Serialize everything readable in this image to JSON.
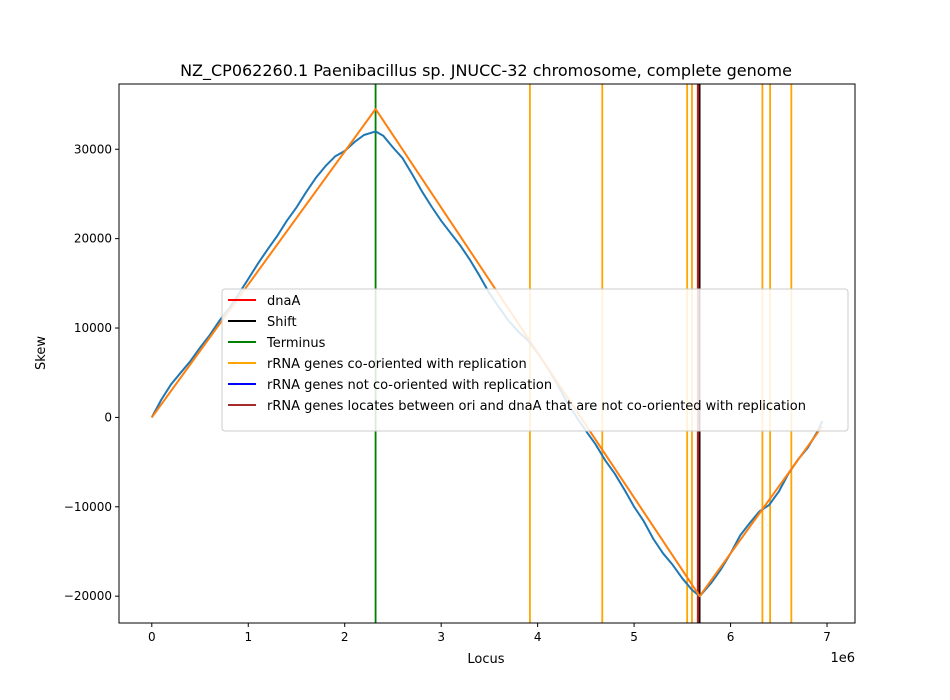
{
  "chart_data": {
    "type": "line",
    "title": "NZ_CP062260.1 Paenibacillus sp. JNUCC-32 chromosome, complete genome",
    "xlabel": "Locus",
    "ylabel": "Skew",
    "x_offset_label": "1e6",
    "xlim": [
      -340000,
      7290000
    ],
    "ylim": [
      -23000,
      37300
    ],
    "x_ticks": [
      0,
      1000000,
      2000000,
      3000000,
      4000000,
      5000000,
      6000000,
      7000000
    ],
    "x_tick_labels": [
      "0",
      "1",
      "2",
      "3",
      "4",
      "5",
      "6",
      "7"
    ],
    "y_ticks": [
      -20000,
      -10000,
      0,
      10000,
      20000,
      30000
    ],
    "y_tick_labels": [
      "−20000",
      "−10000",
      "0",
      "10000",
      "20000",
      "30000"
    ],
    "grid": false,
    "legend_position": "center-right",
    "series": [
      {
        "role": "skew",
        "color": "#1f77b4",
        "x": [
          0,
          100000,
          200000,
          300000,
          400000,
          500000,
          600000,
          700000,
          800000,
          900000,
          1000000,
          1100000,
          1200000,
          1300000,
          1400000,
          1500000,
          1600000,
          1700000,
          1800000,
          1900000,
          2000000,
          2100000,
          2200000,
          2320000,
          2400000,
          2500000,
          2600000,
          2700000,
          2800000,
          2900000,
          3000000,
          3100000,
          3200000,
          3300000,
          3400000,
          3500000,
          3600000,
          3700000,
          3800000,
          3900000,
          4000000,
          4100000,
          4200000,
          4300000,
          4400000,
          4500000,
          4600000,
          4700000,
          4800000,
          4900000,
          5000000,
          5100000,
          5200000,
          5300000,
          5400000,
          5500000,
          5600000,
          5680000,
          5800000,
          5900000,
          6000000,
          6100000,
          6200000,
          6300000,
          6400000,
          6500000,
          6600000,
          6700000,
          6800000,
          6900000,
          6950000
        ],
        "y": [
          0,
          2000,
          3700,
          5000,
          6300,
          7800,
          9200,
          10800,
          12200,
          13800,
          15500,
          17200,
          18800,
          20300,
          22000,
          23500,
          25200,
          26800,
          28100,
          29200,
          29800,
          30800,
          31600,
          32000,
          31500,
          30200,
          29000,
          27200,
          25300,
          23600,
          22000,
          20600,
          19200,
          17600,
          15800,
          13900,
          12300,
          10800,
          9600,
          8600,
          7200,
          5600,
          3800,
          1800,
          100,
          -1500,
          -3000,
          -4800,
          -6300,
          -8100,
          -10000,
          -11600,
          -13600,
          -15200,
          -16500,
          -18000,
          -19300,
          -20000,
          -18500,
          -17000,
          -15200,
          -13200,
          -11800,
          -10500,
          -9800,
          -8300,
          -6300,
          -4700,
          -3400,
          -1600,
          -400
        ]
      },
      {
        "role": "fit",
        "color": "#ff7f0e",
        "x": [
          0,
          2320000,
          5680000,
          6950000
        ],
        "y": [
          0,
          34500,
          -20000,
          -1000
        ]
      }
    ],
    "vertical_lines": [
      {
        "role": "Terminus",
        "x": 2320000,
        "color": "#008000"
      },
      {
        "role": "rRNA genes co-oriented with replication",
        "x": 3920000,
        "color": "#ffa500"
      },
      {
        "role": "rRNA genes co-oriented with replication",
        "x": 4670000,
        "color": "#ffa500"
      },
      {
        "role": "rRNA genes co-oriented with replication",
        "x": 5550000,
        "color": "#ffa500"
      },
      {
        "role": "rRNA genes co-oriented with replication",
        "x": 5600000,
        "color": "#ffa500"
      },
      {
        "role": "rRNA genes co-oriented with replication",
        "x": 6330000,
        "color": "#ffa500"
      },
      {
        "role": "rRNA genes co-oriented with replication",
        "x": 6410000,
        "color": "#ffa500"
      },
      {
        "role": "rRNA genes co-oriented with replication",
        "x": 6630000,
        "color": "#ffa500"
      },
      {
        "role": "rRNA genes locates between ori and dnaA that are not co-oriented with replication",
        "x": 5660000,
        "color": "#a52a2a"
      },
      {
        "role": "dnaA",
        "x": 5675000,
        "color": "#ff0000"
      },
      {
        "role": "Shift",
        "x": 5680000,
        "color": "#000000"
      }
    ],
    "legend": [
      {
        "label": "dnaA",
        "color": "#ff0000"
      },
      {
        "label": "Shift",
        "color": "#000000"
      },
      {
        "label": "Terminus",
        "color": "#008000"
      },
      {
        "label": "rRNA genes co-oriented with replication",
        "color": "#ffa500"
      },
      {
        "label": "rRNA genes not co-oriented with replication",
        "color": "#0000ff"
      },
      {
        "label": "rRNA genes locates between ori and dnaA that are not co-oriented with replication",
        "color": "#a52a2a"
      }
    ]
  }
}
